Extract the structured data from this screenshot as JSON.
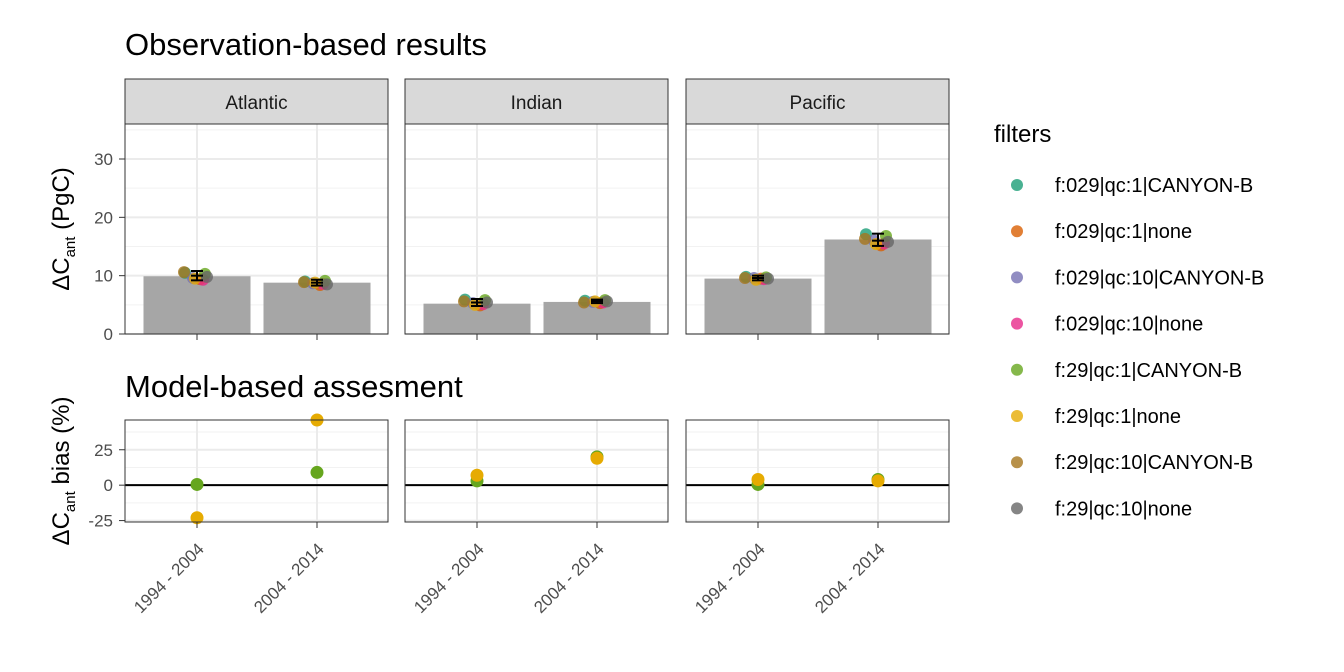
{
  "top_title": "Observation-based results",
  "bottom_title": "Model-based assesment",
  "legend": {
    "title": "filters",
    "items": [
      {
        "label": "f:029|qc:1|CANYON-B",
        "color": "#1B9E77"
      },
      {
        "label": "f:029|qc:1|none",
        "color": "#D95F02"
      },
      {
        "label": "f:029|qc:10|CANYON-B",
        "color": "#7570B3"
      },
      {
        "label": "f:029|qc:10|none",
        "color": "#E7298A"
      },
      {
        "label": "f:29|qc:1|CANYON-B",
        "color": "#66A61E"
      },
      {
        "label": "f:29|qc:1|none",
        "color": "#E6AB02"
      },
      {
        "label": "f:29|qc:10|CANYON-B",
        "color": "#A6761D"
      },
      {
        "label": "f:29|qc:10|none",
        "color": "#666666"
      }
    ]
  },
  "chart_data": [
    {
      "type": "bar",
      "title": "Observation-based results",
      "ylabel": "ΔC_ant (PgC)",
      "ylim": [
        0,
        36
      ],
      "yticks": [
        0,
        10,
        20,
        30
      ],
      "categories": [
        "1994 - 2004",
        "2004 - 2014"
      ],
      "facets": [
        {
          "name": "Atlantic",
          "bars": [
            9.9,
            8.8
          ],
          "mean": [
            10.0,
            8.8
          ],
          "error": [
            [
              9.2,
              10.8
            ],
            [
              8.3,
              9.3
            ]
          ],
          "points": [
            [
              10.5,
              9.4,
              9.6,
              9.3,
              10.3,
              9.5,
              10.6,
              9.8
            ],
            [
              9.0,
              8.4,
              8.7,
              8.6,
              9.1,
              8.8,
              8.9,
              8.5
            ]
          ]
        },
        {
          "name": "Indian",
          "bars": [
            5.2,
            5.5
          ],
          "mean": [
            5.4,
            5.6
          ],
          "error": [
            [
              4.8,
              6.0
            ],
            [
              5.3,
              5.9
            ]
          ],
          "points": [
            [
              5.9,
              4.9,
              5.3,
              5.1,
              5.8,
              5.0,
              5.6,
              5.4
            ],
            [
              5.7,
              5.3,
              5.5,
              5.4,
              5.8,
              5.6,
              5.4,
              5.6
            ]
          ]
        },
        {
          "name": "Pacific",
          "bars": [
            9.5,
            16.2
          ],
          "mean": [
            9.6,
            16.0
          ],
          "error": [
            [
              9.2,
              10.0
            ],
            [
              15.1,
              17.2
            ]
          ],
          "points": [
            [
              9.8,
              9.5,
              9.6,
              9.4,
              9.7,
              9.3,
              9.6,
              9.5
            ],
            [
              17.1,
              15.2,
              16.0,
              15.5,
              16.8,
              15.4,
              16.3,
              15.8
            ]
          ]
        }
      ]
    },
    {
      "type": "scatter",
      "title": "Model-based assesment",
      "ylabel": "ΔC_ant bias (%)",
      "ylim": [
        -26,
        46
      ],
      "yticks": [
        -25,
        0,
        25
      ],
      "hline": 0,
      "categories": [
        "1994 - 2004",
        "2004 - 2014"
      ],
      "facets": [
        {
          "name": "Atlantic",
          "series": [
            {
              "name": "f:29|qc:1|CANYON-B",
              "values": [
                0.5,
                9
              ]
            },
            {
              "name": "f:29|qc:1|none",
              "values": [
                -23,
                46
              ]
            }
          ]
        },
        {
          "name": "Indian",
          "series": [
            {
              "name": "f:29|qc:1|CANYON-B",
              "values": [
                3,
                20
              ]
            },
            {
              "name": "f:29|qc:1|none",
              "values": [
                7,
                19
              ]
            }
          ]
        },
        {
          "name": "Pacific",
          "series": [
            {
              "name": "f:29|qc:1|CANYON-B",
              "values": [
                0.5,
                4
              ]
            },
            {
              "name": "f:29|qc:1|none",
              "values": [
                4,
                3
              ]
            }
          ]
        }
      ]
    }
  ]
}
